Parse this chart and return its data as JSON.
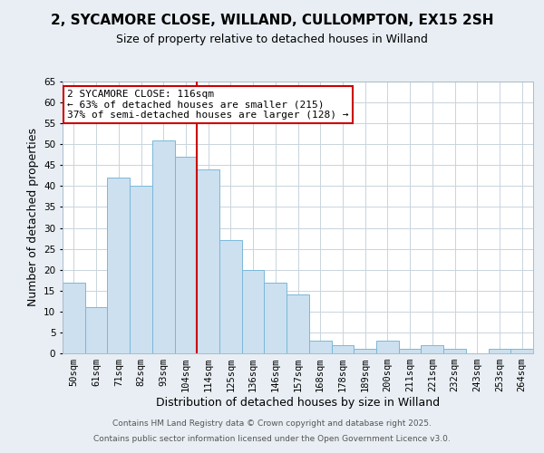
{
  "title": "2, SYCAMORE CLOSE, WILLAND, CULLOMPTON, EX15 2SH",
  "subtitle": "Size of property relative to detached houses in Willand",
  "xlabel": "Distribution of detached houses by size in Willand",
  "ylabel": "Number of detached properties",
  "bar_labels": [
    "50sqm",
    "61sqm",
    "71sqm",
    "82sqm",
    "93sqm",
    "104sqm",
    "114sqm",
    "125sqm",
    "136sqm",
    "146sqm",
    "157sqm",
    "168sqm",
    "178sqm",
    "189sqm",
    "200sqm",
    "211sqm",
    "221sqm",
    "232sqm",
    "243sqm",
    "253sqm",
    "264sqm"
  ],
  "bar_values": [
    17,
    11,
    42,
    40,
    51,
    47,
    44,
    27,
    20,
    17,
    14,
    3,
    2,
    1,
    3,
    1,
    2,
    1,
    0,
    1,
    1
  ],
  "bar_color": "#cce0f0",
  "bar_edge_color": "#7ab8d9",
  "ylim": [
    0,
    65
  ],
  "yticks": [
    0,
    5,
    10,
    15,
    20,
    25,
    30,
    35,
    40,
    45,
    50,
    55,
    60,
    65
  ],
  "vline_index": 6,
  "vline_color": "#cc0000",
  "annotation_title": "2 SYCAMORE CLOSE: 116sqm",
  "annotation_line1": "← 63% of detached houses are smaller (215)",
  "annotation_line2": "37% of semi-detached houses are larger (128) →",
  "annotation_box_color": "#cc0000",
  "footer1": "Contains HM Land Registry data © Crown copyright and database right 2025.",
  "footer2": "Contains public sector information licensed under the Open Government Licence v3.0.",
  "bg_color": "#e8eef4",
  "plot_bg_color": "#ffffff",
  "grid_color": "#c8d4dc",
  "title_fontsize": 11,
  "subtitle_fontsize": 9,
  "tick_fontsize": 7.5,
  "label_fontsize": 9,
  "annotation_fontsize": 8,
  "footer_fontsize": 6.5
}
